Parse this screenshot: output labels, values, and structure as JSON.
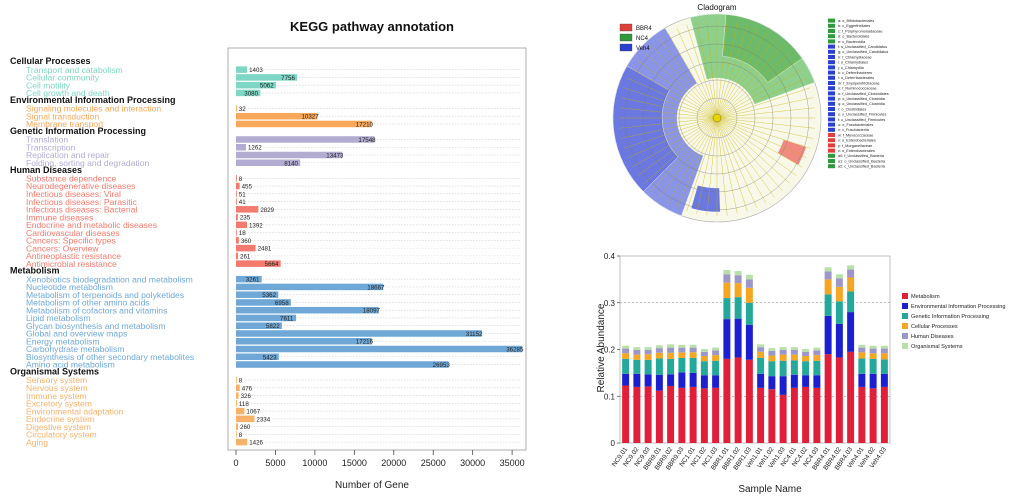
{
  "kegg": {
    "title": "KEGG pathway annotation",
    "xlabel": "Number of Gene",
    "xticks": [
      "0",
      "5000",
      "10000",
      "15000",
      "20000",
      "25000",
      "30000",
      "35000"
    ],
    "colors": {
      "Cellular Processes": "#7fd6c4",
      "Environmental Information Processing": "#f7a85a",
      "Genetic Information Processing": "#b3acd1",
      "Human Diseases": "#f27a6e",
      "Metabolism": "#6fa8d6",
      "Organismal Systems": "#f7b26a"
    }
  },
  "chart_data": [
    {
      "type": "bar",
      "orientation": "horizontal",
      "title": "KEGG pathway annotation",
      "xlabel": "Number of Gene",
      "xlim": [
        0,
        36000
      ],
      "groups": [
        {
          "name": "Cellular Processes",
          "items": [
            {
              "label": "Transport and catabolism",
              "value": 1403
            },
            {
              "label": "Cellular community",
              "value": 7756
            },
            {
              "label": "Cell motility",
              "value": 5062
            },
            {
              "label": "Cell growth and death",
              "value": 3080
            }
          ]
        },
        {
          "name": "Environmental Information Processing",
          "items": [
            {
              "label": "Signaling molecules and interaction",
              "value": 32
            },
            {
              "label": "Signal transduction",
              "value": 10327
            },
            {
              "label": "Membrane transport",
              "value": 17210
            }
          ]
        },
        {
          "name": "Genetic Information Processing",
          "items": [
            {
              "label": "Translation",
              "value": 17548
            },
            {
              "label": "Transcription",
              "value": 1262
            },
            {
              "label": "Replication and repair",
              "value": 13473
            },
            {
              "label": "Folding, sorting and degradation",
              "value": 8140
            }
          ]
        },
        {
          "name": "Human Diseases",
          "items": [
            {
              "label": "Substance dependence",
              "value": 8
            },
            {
              "label": "Neurodegenerative diseases",
              "value": 455
            },
            {
              "label": "Infectious diseases: Viral",
              "value": 51
            },
            {
              "label": "Infectious diseases: Parasitic",
              "value": 41
            },
            {
              "label": "Infectious diseases: Bacterial",
              "value": 2829
            },
            {
              "label": "Immune diseases",
              "value": 235
            },
            {
              "label": "Endocrine and metabolic diseases",
              "value": 1392
            },
            {
              "label": "Cardiovascular diseases",
              "value": 18
            },
            {
              "label": "Cancers: Specific types",
              "value": 360
            },
            {
              "label": "Cancers: Overview",
              "value": 2481
            },
            {
              "label": "Antineoplastic resistance",
              "value": 261
            },
            {
              "label": "Antimicrobial resistance",
              "value": 5664
            }
          ]
        },
        {
          "name": "Metabolism",
          "items": [
            {
              "label": "Xenobiotics biodegradation and metabolism",
              "value": 3261
            },
            {
              "label": "Nucleotide metabolism",
              "value": 18667
            },
            {
              "label": "Metabolism of terpenoids and polyketides",
              "value": 5362
            },
            {
              "label": "Metabolism of other amino acids",
              "value": 6958
            },
            {
              "label": "Metabolism of cofactors and vitamins",
              "value": 18097
            },
            {
              "label": "Lipid metabolism",
              "value": 7611
            },
            {
              "label": "Glycan biosynthesis and metabolism",
              "value": 5822
            },
            {
              "label": "Global and overview maps",
              "value": 31152
            },
            {
              "label": "Energy metabolism",
              "value": 17216
            },
            {
              "label": "Carbohydrate metabolism",
              "value": 36285
            },
            {
              "label": "Biosynthesis of other secondary metabolites",
              "value": 5423
            },
            {
              "label": "Amino acid metabolism",
              "value": 26953
            }
          ]
        },
        {
          "name": "Organismal Systems",
          "items": [
            {
              "label": "Sensory system",
              "value": 8
            },
            {
              "label": "Nervous system",
              "value": 476
            },
            {
              "label": "Immune system",
              "value": 326
            },
            {
              "label": "Excretory system",
              "value": 118
            },
            {
              "label": "Environmental adaptation",
              "value": 1067
            },
            {
              "label": "Endocrine system",
              "value": 2334
            },
            {
              "label": "Digestive system",
              "value": 260
            },
            {
              "label": "Circulatory system",
              "value": 8
            },
            {
              "label": "Aging",
              "value": 1426
            }
          ]
        }
      ]
    },
    {
      "type": "bar",
      "stacked": true,
      "xlabel": "Sample Name",
      "ylabel": "Relative Abundance",
      "ylim": [
        0,
        0.4
      ],
      "yticks": [
        "0",
        "0.1",
        "0.2",
        "0.3",
        "0.4"
      ],
      "legend_position": "right",
      "categories": [
        "NC9.01",
        "NC9.02",
        "NC9.03",
        "BBR9.01",
        "BBR9.02",
        "BBR9.03",
        "NC1.01",
        "NC1.02",
        "NC1.03",
        "BBR1.01",
        "BBR1.02",
        "BBR1.03",
        "Veh1.01",
        "Veh1.02",
        "Veh1.03",
        "NC4.01",
        "NC4.02",
        "NC4.03",
        "BBR4.01",
        "BBR4.02",
        "BBR4.03",
        "Veh4.01",
        "Veh4.02",
        "Veh4.03"
      ],
      "series": [
        {
          "name": "Metabolism",
          "color": "#e0203a",
          "values": [
            0.123,
            0.12,
            0.121,
            0.112,
            0.122,
            0.118,
            0.12,
            0.117,
            0.118,
            0.18,
            0.183,
            0.178,
            0.118,
            0.115,
            0.103,
            0.118,
            0.12,
            0.118,
            0.19,
            0.183,
            0.195,
            0.12,
            0.117,
            0.12
          ]
        },
        {
          "name": "Environmental Information Processing",
          "color": "#1c1fcf",
          "values": [
            0.025,
            0.028,
            0.026,
            0.034,
            0.025,
            0.033,
            0.03,
            0.028,
            0.027,
            0.085,
            0.083,
            0.075,
            0.03,
            0.028,
            0.04,
            0.028,
            0.025,
            0.027,
            0.082,
            0.072,
            0.085,
            0.028,
            0.031,
            0.028
          ]
        },
        {
          "name": "Genetic Information Processing",
          "color": "#23a89a",
          "values": [
            0.032,
            0.03,
            0.031,
            0.035,
            0.033,
            0.031,
            0.032,
            0.03,
            0.031,
            0.045,
            0.046,
            0.047,
            0.034,
            0.032,
            0.033,
            0.031,
            0.03,
            0.031,
            0.046,
            0.048,
            0.044,
            0.033,
            0.032,
            0.031
          ]
        },
        {
          "name": "Cellular Processes",
          "color": "#f5a623",
          "values": [
            0.012,
            0.011,
            0.012,
            0.012,
            0.013,
            0.012,
            0.012,
            0.011,
            0.012,
            0.033,
            0.03,
            0.032,
            0.013,
            0.012,
            0.013,
            0.012,
            0.011,
            0.012,
            0.032,
            0.031,
            0.03,
            0.013,
            0.012,
            0.013
          ]
        },
        {
          "name": "Human Diseases",
          "color": "#9c97c9",
          "values": [
            0.01,
            0.01,
            0.009,
            0.01,
            0.011,
            0.01,
            0.01,
            0.009,
            0.01,
            0.018,
            0.017,
            0.018,
            0.01,
            0.01,
            0.01,
            0.01,
            0.009,
            0.01,
            0.017,
            0.018,
            0.017,
            0.01,
            0.01,
            0.01
          ]
        },
        {
          "name": "Organismal Systems",
          "color": "#b9e0a8",
          "values": [
            0.006,
            0.006,
            0.006,
            0.006,
            0.007,
            0.006,
            0.006,
            0.006,
            0.006,
            0.009,
            0.009,
            0.01,
            0.006,
            0.006,
            0.006,
            0.006,
            0.006,
            0.006,
            0.009,
            0.009,
            0.009,
            0.006,
            0.006,
            0.006
          ]
        }
      ]
    }
  ],
  "cladogram": {
    "title": "Cladogram",
    "group_legend": [
      {
        "name": "BBR4",
        "color": "#e0403a"
      },
      {
        "name": "NC4",
        "color": "#2e9a3a"
      },
      {
        "name": "Veh4",
        "color": "#2b3fd0"
      }
    ],
    "taxa_legend": [
      "a: o_Bifidobacteriales",
      "b: c_Eggerthellales",
      "c: f_Porphyromonadaceae",
      "d: o_Bacteroidales",
      "e: c_Bacteroidia",
      "f: s_Unclassified_Candidatus",
      "g: o_Unclassified_Candidatus",
      "h: f_Chlamydiaceae",
      "i: o_Chlamydiales",
      "j: c_Chlamydiia",
      "k: c_Deferribacteres",
      "l: o_Deferribacterales",
      "m: f_Erysipelotrichaceae",
      "n: f_Ruminococcaceae",
      "o: f_Unclassified_Clostridiales",
      "p: o_Unclassified_Clostridia",
      "q: o_Unclassified_Clostridia",
      "r: o_Clostridiales",
      "s: o_Unclassified_Firmicutes",
      "t: c_Unclassified_Firmicutes",
      "u: o_Fusobacteriales",
      "v: c_Fusobacteriia",
      "w: f_Myxococcaceae",
      "x: o_Enterobacteriales",
      "y: f_Morganellaceae",
      "z: o_Enterobacterales",
      "a0: f_Unclassified_Bacteria",
      "a1: o_Unclassified_Bacteria",
      "a2: c_Unclassified_Bacteria"
    ],
    "taxa_colors": [
      "#2e9a3a",
      "#2e9a3a",
      "#2e9a3a",
      "#2e9a3a",
      "#2e9a3a",
      "#2b3fd0",
      "#2b3fd0",
      "#2b3fd0",
      "#2b3fd0",
      "#2b3fd0",
      "#2b3fd0",
      "#2b3fd0",
      "#2b3fd0",
      "#2b3fd0",
      "#2b3fd0",
      "#2b3fd0",
      "#2b3fd0",
      "#2b3fd0",
      "#2b3fd0",
      "#2b3fd0",
      "#2b3fd0",
      "#2b3fd0",
      "#e0403a",
      "#e0403a",
      "#e0403a",
      "#e0403a",
      "#2e9a3a",
      "#2e9a3a",
      "#2e9a3a"
    ]
  }
}
